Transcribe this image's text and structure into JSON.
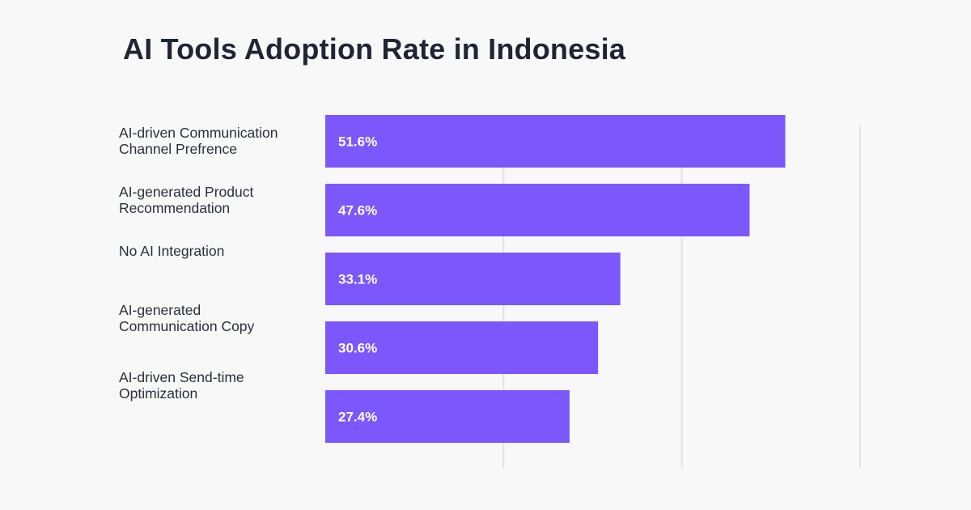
{
  "chart_data": {
    "type": "bar",
    "orientation": "horizontal",
    "title": "AI Tools Adoption Rate in Indonesia",
    "categories": [
      "AI-driven Communication Channel Prefrence",
      "AI-generated Product Recommendation",
      "No AI Integration",
      "AI-generated Communication Copy",
      "AI-driven Send-time Optimization"
    ],
    "category_lines": [
      "AI-driven Communication\nChannel Prefrence",
      "AI-generated Product\nRecommendation",
      "No AI Integration",
      "AI-generated\nCommunication Copy",
      "AI-driven Send-time\nOptimization"
    ],
    "values": [
      51.6,
      47.6,
      33.1,
      30.6,
      27.4
    ],
    "data_labels": [
      "51.6%",
      "47.6%",
      "33.1%",
      "30.6%",
      "27.4%"
    ],
    "unit": "%",
    "xlim": [
      0,
      60
    ],
    "grid": true,
    "gridlines": [
      20,
      40,
      60
    ],
    "bar_color": "#7b57fc",
    "label_color": "#ffffff",
    "background": "#f8f8f8"
  }
}
